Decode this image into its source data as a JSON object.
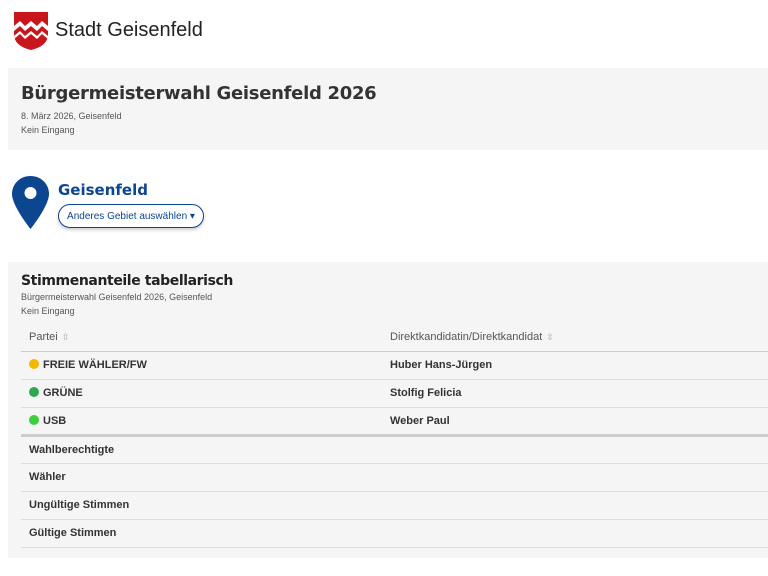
{
  "header": {
    "brand": "Stadt Geisenfeld",
    "logo": "coat-of-arms-icon"
  },
  "election": {
    "title": "Bürgermeisterwahl Geisenfeld 2026",
    "date_place": "8. März 2026, Geisenfeld",
    "status": "Kein Eingang"
  },
  "area": {
    "name": "Geisenfeld",
    "select_label": "Anderes Gebiet auswählen ▾"
  },
  "table": {
    "title": "Stimmenanteile tabellarisch",
    "subtitle": "Bürgermeisterwahl Geisenfeld 2026, Geisenfeld",
    "status": "Kein Eingang",
    "headers": [
      "Partei",
      "Direktkandidatin/Direktkandidat"
    ],
    "sort_icon": "⇳",
    "rows": [
      {
        "party": "FREIE WÄHLER/FW",
        "candidate": "Huber Hans-Jürgen",
        "color": "#f5b800"
      },
      {
        "party": "GRÜNE",
        "candidate": "Stolfig Felicia",
        "color": "#2fa84f"
      },
      {
        "party": "USB",
        "candidate": "Weber Paul",
        "color": "#3ccf3c"
      }
    ],
    "summary": [
      "Wahlberechtigte",
      "Wähler",
      "Ungültige Stimmen",
      "Gültige Stimmen"
    ]
  }
}
